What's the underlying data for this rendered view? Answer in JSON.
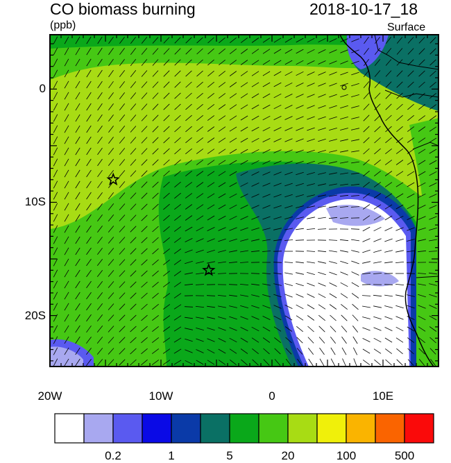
{
  "header": {
    "title": "CO biomass burning",
    "units": "(ppb)",
    "datetime": "2018-10-17_18",
    "level": "Surface"
  },
  "map": {
    "lon_range": [
      -20,
      15
    ],
    "lat_range": [
      -24.5,
      4.8
    ],
    "x_ticks": [
      {
        "lon": -20,
        "label": "20W"
      },
      {
        "lon": -10,
        "label": "10W"
      },
      {
        "lon": 0,
        "label": "0"
      },
      {
        "lon": 10,
        "label": "10E"
      }
    ],
    "y_ticks": [
      {
        "lat": 0,
        "label": "0"
      },
      {
        "lat": -10,
        "label": "10S"
      },
      {
        "lat": -20,
        "label": "20S"
      }
    ],
    "markers": [
      {
        "name": "star-marker-1",
        "lon": -14.3,
        "lat": -8.0
      },
      {
        "name": "star-marker-2",
        "lon": -5.7,
        "lat": -16.0
      }
    ]
  },
  "colorbar": {
    "colors": [
      "#ffffff",
      "#a8a8f0",
      "#5a5af0",
      "#0a0ae6",
      "#0a3aa8",
      "#0a7064",
      "#0aa81a",
      "#46c814",
      "#a8dc14",
      "#f0f00a",
      "#fab400",
      "#fa6400",
      "#fa0a0a"
    ],
    "labels": [
      {
        "text": "0.2",
        "boundary": 2
      },
      {
        "text": "1",
        "boundary": 4
      },
      {
        "text": "5",
        "boundary": 6
      },
      {
        "text": "20",
        "boundary": 8
      },
      {
        "text": "100",
        "boundary": 10
      },
      {
        "text": "500",
        "boundary": 12
      }
    ]
  }
}
